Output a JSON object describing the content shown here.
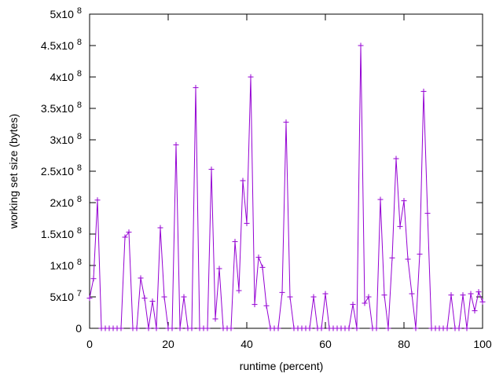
{
  "chart_data": {
    "type": "line",
    "xlabel": "runtime (percent)",
    "ylabel": "working set size (bytes)",
    "color": "#9400d3",
    "x": [
      0,
      1,
      2,
      3,
      4,
      5,
      6,
      7,
      8,
      9,
      10,
      11,
      12,
      13,
      14,
      15,
      16,
      17,
      18,
      19,
      20,
      21,
      22,
      23,
      24,
      25,
      26,
      27,
      28,
      29,
      30,
      31,
      32,
      33,
      34,
      35,
      36,
      37,
      38,
      39,
      40,
      41,
      42,
      43,
      44,
      45,
      46,
      47,
      48,
      49,
      50,
      51,
      52,
      53,
      54,
      55,
      56,
      57,
      58,
      59,
      60,
      61,
      62,
      63,
      64,
      65,
      66,
      67,
      68,
      69,
      70,
      71,
      72,
      73,
      74,
      75,
      76,
      77,
      78,
      79,
      80,
      81,
      82,
      83,
      84,
      85,
      86,
      87,
      88,
      89,
      90,
      91,
      92,
      93,
      94,
      95,
      96,
      97,
      98,
      99,
      100
    ],
    "values": [
      48000000,
      79000000,
      204000000,
      0,
      0,
      0,
      0,
      0,
      0,
      145000000,
      153000000,
      0,
      0,
      80000000,
      48000000,
      0,
      43000000,
      0,
      160000000,
      50000000,
      0,
      0,
      292000000,
      0,
      50000000,
      0,
      0,
      383000000,
      0,
      0,
      0,
      253000000,
      15000000,
      95000000,
      0,
      0,
      0,
      138000000,
      60000000,
      235000000,
      167000000,
      400000000,
      38000000,
      113000000,
      97000000,
      36000000,
      0,
      0,
      0,
      57000000,
      328000000,
      50000000,
      0,
      0,
      0,
      0,
      0,
      50000000,
      0,
      0,
      55000000,
      0,
      0,
      0,
      0,
      0,
      0,
      38000000,
      0,
      450000000,
      40000000,
      50000000,
      0,
      0,
      205000000,
      53000000,
      0,
      112000000,
      270000000,
      162000000,
      203000000,
      110000000,
      55000000,
      0,
      118000000,
      377000000,
      183000000,
      0,
      0,
      0,
      0,
      0,
      53000000,
      0,
      0,
      53000000,
      0,
      55000000,
      28000000,
      58000000,
      42000000
    ],
    "xlim": [
      0,
      100
    ],
    "xticks": [
      0,
      20,
      40,
      60,
      80,
      100
    ],
    "ylim": [
      0,
      500000000
    ],
    "yticks": [
      0,
      {
        "value": 50000000,
        "label": "5x10",
        "exponent": "7"
      },
      {
        "value": 100000000,
        "label": "1x10",
        "exponent": "8"
      },
      {
        "value": 150000000,
        "label": "1.5x10",
        "exponent": "8"
      },
      {
        "value": 200000000,
        "label": "2x10",
        "exponent": "8"
      },
      {
        "value": 250000000,
        "label": "2.5x10",
        "exponent": "8"
      },
      {
        "value": 300000000,
        "label": "3x10",
        "exponent": "8"
      },
      {
        "value": 350000000,
        "label": "3.5x10",
        "exponent": "8"
      },
      {
        "value": 400000000,
        "label": "4x10",
        "exponent": "8"
      },
      {
        "value": 450000000,
        "label": "4.5x10",
        "exponent": "8"
      },
      {
        "value": 500000000,
        "label": "5x10",
        "exponent": "8"
      }
    ]
  }
}
